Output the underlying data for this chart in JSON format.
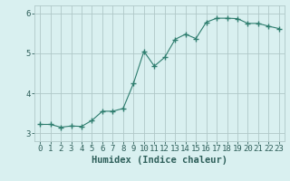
{
  "x": [
    0,
    1,
    2,
    3,
    4,
    5,
    6,
    7,
    8,
    9,
    10,
    11,
    12,
    13,
    14,
    15,
    16,
    17,
    18,
    19,
    20,
    21,
    22,
    23
  ],
  "y": [
    3.22,
    3.22,
    3.15,
    3.18,
    3.17,
    3.32,
    3.55,
    3.55,
    3.62,
    4.25,
    5.05,
    4.68,
    4.9,
    5.35,
    5.48,
    5.37,
    5.78,
    5.88,
    5.88,
    5.87,
    5.75,
    5.75,
    5.68,
    5.62
  ],
  "line_color": "#2e7d6e",
  "marker": "+",
  "marker_size": 4,
  "bg_color": "#d9f0f0",
  "grid_color": "#b0c8c8",
  "tick_color": "#2e5f5a",
  "xlabel": "Humidex (Indice chaleur)",
  "xlabel_fontsize": 7.5,
  "tick_fontsize": 6.5,
  "ylim": [
    2.8,
    6.2
  ],
  "xlim": [
    -0.5,
    23.5
  ],
  "yticks": [
    3,
    4,
    5,
    6
  ],
  "xticks": [
    0,
    1,
    2,
    3,
    4,
    5,
    6,
    7,
    8,
    9,
    10,
    11,
    12,
    13,
    14,
    15,
    16,
    17,
    18,
    19,
    20,
    21,
    22,
    23
  ]
}
